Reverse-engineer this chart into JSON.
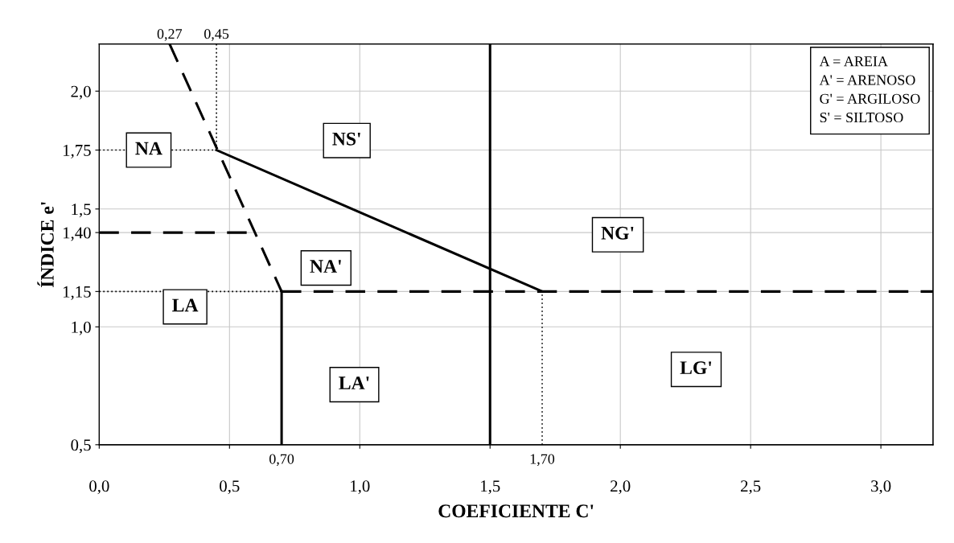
{
  "chart_data": {
    "type": "line",
    "xlabel": "COEFICIENTE C'",
    "ylabel": "ÍNDICE e'",
    "xlim": [
      0,
      3.2
    ],
    "ylim": [
      0.5,
      2.2
    ],
    "xticks": [
      {
        "value": 0,
        "label": "0,0"
      },
      {
        "value": 0.5,
        "label": "0,5"
      },
      {
        "value": 1.0,
        "label": "1,0"
      },
      {
        "value": 1.5,
        "label": "1,5"
      },
      {
        "value": 2.0,
        "label": "2,0"
      },
      {
        "value": 2.5,
        "label": "2,5"
      },
      {
        "value": 3.0,
        "label": "3,0"
      }
    ],
    "yticks": [
      {
        "value": 0.5,
        "label": "0,5"
      },
      {
        "value": 1.0,
        "label": "1,0"
      },
      {
        "value": 1.15,
        "label": "1,15"
      },
      {
        "value": 1.4,
        "label": "1,40"
      },
      {
        "value": 1.5,
        "label": "1,5"
      },
      {
        "value": 1.75,
        "label": "1,75"
      },
      {
        "value": 2.0,
        "label": "2,0"
      }
    ],
    "x2lim": [
      0,
      3.2
    ],
    "x2ticks": [
      {
        "value": 0.27,
        "label": "0,27"
      },
      {
        "value": 0.45,
        "label": "0,45"
      }
    ],
    "grid": true,
    "marker": "none",
    "series": [
      {
        "color": "#000000",
        "line_style": "dashed",
        "x": [
          0.27,
          0.7
        ],
        "values": [
          2.2,
          1.15
        ]
      },
      {
        "color": "#000000",
        "line_style": "solid",
        "x": [
          0.45,
          1.7
        ],
        "values": [
          1.75,
          1.15
        ]
      },
      {
        "color": "#000000",
        "line_style": "solid",
        "x": [
          0.7,
          0.7
        ],
        "values": [
          0.5,
          1.15
        ]
      },
      {
        "color": "#000000",
        "line_style": "solid",
        "x": [
          1.5,
          1.5
        ],
        "values": [
          0.5,
          2.2
        ]
      },
      {
        "color": "#000000",
        "line_style": "dashed",
        "x": [
          0.7,
          3.2
        ],
        "values": [
          1.15,
          1.15
        ]
      },
      {
        "color": "#000000",
        "line_style": "dashed",
        "x": [
          0,
          0.6
        ],
        "values": [
          1.4,
          1.4
        ]
      },
      {
        "color": "#000000",
        "line_style": "dotted",
        "x": [
          0,
          0.45
        ],
        "values": [
          1.75,
          1.75
        ]
      },
      {
        "color": "#000000",
        "line_style": "dotted",
        "x": [
          0,
          0.7
        ],
        "values": [
          1.15,
          1.15
        ]
      },
      {
        "color": "#000000",
        "line_style": "dotted",
        "x": [
          0.45,
          0.45
        ],
        "values": [
          1.75,
          2.2
        ]
      },
      {
        "color": "#000000",
        "line_style": "dotted",
        "x": [
          1.7,
          1.7
        ],
        "values": [
          0.5,
          1.15
        ]
      }
    ],
    "annotations": [
      {
        "text": "0,70",
        "x": 0.7,
        "y": 0.5
      },
      {
        "text": "1,70",
        "x": 1.7,
        "y": 0.5
      },
      {
        "text": "NA",
        "x": 0.19,
        "y": 1.75
      },
      "NS'",
      "NA'",
      "NG'",
      "LA",
      "LA'",
      "LG'",
      "A = AREIA\nA' = ARENOSO\nG' = ARGILOSO\nS' = SILTOSO"
    ]
  }
}
